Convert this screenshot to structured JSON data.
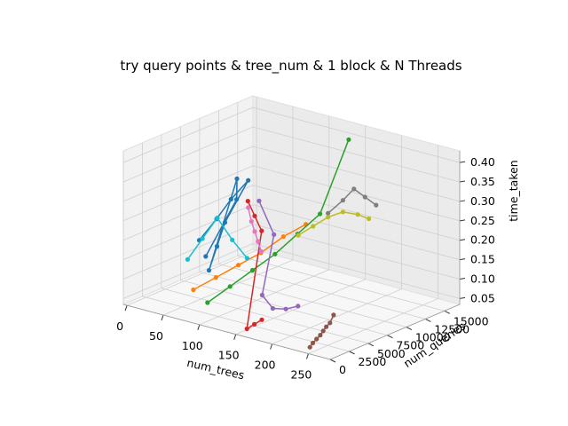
{
  "chart_data": {
    "type": "line",
    "projection": "3d",
    "title": "try query points & tree_num & 1 block & N Threads",
    "xlabel": "num_trees",
    "ylabel": "num_queries",
    "zlabel": "time_taken",
    "xlim": [
      -5,
      280
    ],
    "ylim": [
      0,
      17000
    ],
    "zlim": [
      0.035,
      0.43
    ],
    "x_ticks": [
      "0",
      "50",
      "100",
      "150",
      "200",
      "250"
    ],
    "y_ticks": [
      "0",
      "2500",
      "5000",
      "7500",
      "10000",
      "12500",
      "15000"
    ],
    "z_ticks": [
      "0.05",
      "0.10",
      "0.15",
      "0.20",
      "0.25",
      "0.30",
      "0.35",
      "0.40"
    ],
    "grid": true,
    "marker": "circle",
    "series": [
      {
        "color": "#1f77b4",
        "x": [
          5,
          8,
          12,
          20,
          30,
          40,
          50,
          15,
          25,
          35
        ],
        "y": [
          9000,
          11000,
          12500,
          14000,
          10000,
          8000,
          6000,
          13000,
          12000,
          7000
        ],
        "z": [
          0.13,
          0.17,
          0.21,
          0.25,
          0.18,
          0.14,
          0.1,
          0.26,
          0.22,
          0.12
        ]
      },
      {
        "color": "#ff7f0e",
        "x": [
          60,
          70,
          80,
          90,
          100,
          110
        ],
        "y": [
          3000,
          5000,
          7000,
          9000,
          11000,
          13000
        ],
        "z": [
          0.08,
          0.1,
          0.12,
          0.14,
          0.17,
          0.19
        ]
      },
      {
        "color": "#2ca02c",
        "x": [
          90,
          100,
          110,
          120,
          130,
          140,
          148
        ],
        "y": [
          2000,
          4000,
          6000,
          8000,
          10000,
          12000,
          15000
        ],
        "z": [
          0.07,
          0.1,
          0.13,
          0.16,
          0.2,
          0.24,
          0.41
        ]
      },
      {
        "color": "#d62728",
        "x": [
          30,
          50,
          70,
          160,
          165,
          170
        ],
        "y": [
          13000,
          12000,
          11000,
          500,
          1000,
          1500
        ],
        "z": [
          0.21,
          0.19,
          0.17,
          0.05,
          0.06,
          0.07
        ]
      },
      {
        "color": "#9467bd",
        "x": [
          140,
          150,
          160,
          180,
          200,
          220
        ],
        "y": [
          4000,
          5000,
          2500,
          2000,
          1800,
          1500
        ],
        "z": [
          0.34,
          0.25,
          0.12,
          0.1,
          0.11,
          0.13
        ]
      },
      {
        "color": "#8c564b",
        "x": [
          250,
          252,
          255,
          258,
          260,
          262,
          265,
          268
        ],
        "y": [
          200,
          400,
          600,
          800,
          1000,
          1200,
          1400,
          1600
        ],
        "z": [
          0.05,
          0.06,
          0.07,
          0.08,
          0.09,
          0.1,
          0.11,
          0.13
        ]
      },
      {
        "color": "#e377c2",
        "x": [
          20,
          35,
          50,
          65,
          80
        ],
        "y": [
          14000,
          13000,
          12000,
          11000,
          10000
        ],
        "z": [
          0.18,
          0.16,
          0.15,
          0.14,
          0.13
        ]
      },
      {
        "color": "#7f7f7f",
        "x": [
          130,
          140,
          150,
          160,
          170
        ],
        "y": [
          14000,
          15000,
          15500,
          16000,
          16500
        ],
        "z": [
          0.22,
          0.25,
          0.28,
          0.26,
          0.24
        ]
      },
      {
        "color": "#bcbd22",
        "x": [
          110,
          120,
          130,
          140,
          150,
          160
        ],
        "y": [
          12000,
          13000,
          14000,
          15000,
          16000,
          16500
        ],
        "z": [
          0.17,
          0.19,
          0.21,
          0.22,
          0.21,
          0.2
        ]
      },
      {
        "color": "#17becf",
        "x": [
          10,
          20,
          30,
          40,
          50
        ],
        "y": [
          7000,
          8000,
          9000,
          10000,
          11000
        ],
        "z": [
          0.1,
          0.15,
          0.2,
          0.14,
          0.09
        ]
      }
    ]
  }
}
